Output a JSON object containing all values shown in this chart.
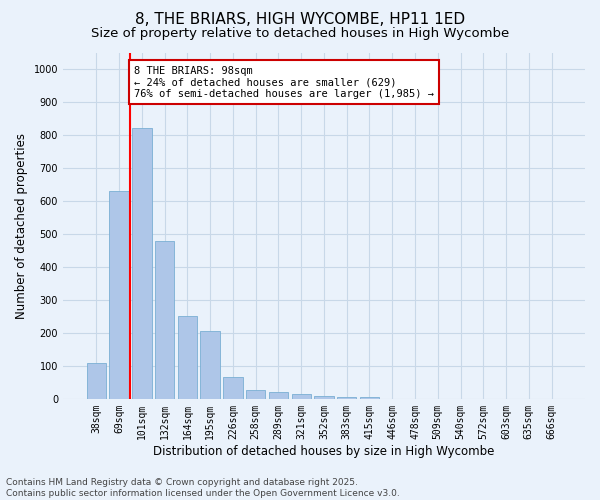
{
  "title": "8, THE BRIARS, HIGH WYCOMBE, HP11 1ED",
  "subtitle": "Size of property relative to detached houses in High Wycombe",
  "xlabel": "Distribution of detached houses by size in High Wycombe",
  "ylabel": "Number of detached properties",
  "categories": [
    "38sqm",
    "69sqm",
    "101sqm",
    "132sqm",
    "164sqm",
    "195sqm",
    "226sqm",
    "258sqm",
    "289sqm",
    "321sqm",
    "352sqm",
    "383sqm",
    "415sqm",
    "446sqm",
    "478sqm",
    "509sqm",
    "540sqm",
    "572sqm",
    "603sqm",
    "635sqm",
    "666sqm"
  ],
  "values": [
    109,
    629,
    820,
    480,
    252,
    207,
    65,
    26,
    22,
    15,
    10,
    7,
    5,
    0,
    0,
    0,
    0,
    0,
    0,
    0,
    0
  ],
  "bar_color": "#aec6e8",
  "bar_edge_color": "#7aafd4",
  "redline_index": 1.5,
  "annotation_text": "8 THE BRIARS: 98sqm\n← 24% of detached houses are smaller (629)\n76% of semi-detached houses are larger (1,985) →",
  "annotation_box_color": "#ffffff",
  "annotation_box_edge": "#cc0000",
  "grid_color": "#c8d8e8",
  "background_color": "#eaf2fb",
  "plot_bg_color": "#eaf2fb",
  "footer": "Contains HM Land Registry data © Crown copyright and database right 2025.\nContains public sector information licensed under the Open Government Licence v3.0.",
  "ylim": [
    0,
    1050
  ],
  "yticks": [
    0,
    100,
    200,
    300,
    400,
    500,
    600,
    700,
    800,
    900,
    1000
  ],
  "title_fontsize": 11,
  "subtitle_fontsize": 9.5,
  "axis_label_fontsize": 8.5,
  "tick_fontsize": 7,
  "footer_fontsize": 6.5,
  "annotation_fontsize": 7.5
}
